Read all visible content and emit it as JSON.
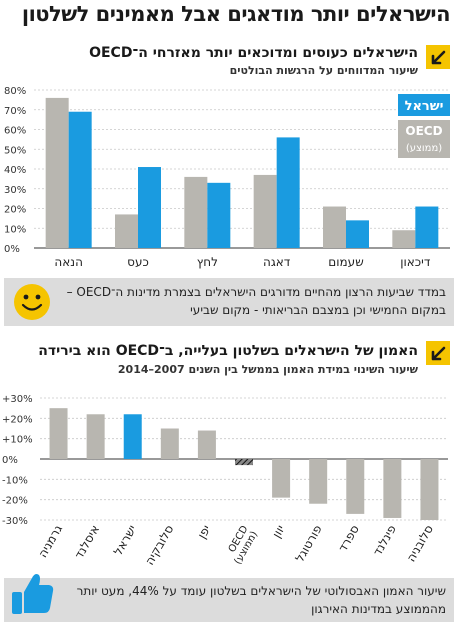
{
  "title": "הישראלים יותר מודאגים אבל מאמינים לשלטון",
  "section1": {
    "title": "הישראלים כעוסים ומדוכאים יותר מאזרחי ה־OECD",
    "subtitle": "שיעור המדווחים על הרגשות הבולטים",
    "info_text": "במדד שביעות הרצון מהחיים מדורגים הישראלים בצמרת מדינות ה־OECD – במקום החמישי וכן במצבם הבריאותי - מקום שביעי"
  },
  "section2": {
    "title": "האמון של הישראלים בשלטון בעלייה, ב־OECD הוא בירידה",
    "subtitle": "שיעור השינוי במידת האמון בממשל בין השנים 2007–2014",
    "info_text": "שיעור האמון האבסולוטי של הישראלים בשלטון עומד על 44%, מעט יותר מהממוצע במדינות האירגון"
  },
  "colors": {
    "israel": "#1a9be0",
    "oecd": "#b8b6b0",
    "accent": "#f5c400",
    "box": "#dcdcdc"
  },
  "icons": {
    "section1_marker": "arrow-icon",
    "section2_marker": "arrow-icon",
    "section1_box": "smiley-icon",
    "section2_box": "thumbs-up-icon"
  },
  "chart_data": [
    {
      "type": "bar",
      "categories": [
        "הנאה",
        "כעס",
        "לחץ",
        "דאגה",
        "שעמום",
        "דיכאון"
      ],
      "series": [
        {
          "name": "OECD (ממוצע)",
          "values": [
            76,
            17,
            36,
            37,
            21,
            9
          ]
        },
        {
          "name": "ישראל",
          "values": [
            69,
            41,
            33,
            56,
            14,
            21
          ]
        }
      ],
      "ylim": [
        0,
        80
      ],
      "yticks": [
        "0%",
        "10%",
        "20%",
        "30%",
        "40%",
        "50%",
        "60%",
        "70%",
        "80%"
      ],
      "legend": [
        {
          "label": "ישראל",
          "series": "ישראל"
        },
        {
          "label": "OECD",
          "sub": "(ממוצע)",
          "series": "OECD (ממוצע)"
        }
      ],
      "legend_position": "top-right",
      "grid": true
    },
    {
      "type": "bar",
      "categories": [
        "גרמניה",
        "איסלנד",
        "ישראל",
        "סלובקיה",
        "יפן",
        "OECD (ממוצע)",
        "יוון",
        "פורטוגל",
        "ספרד",
        "פינלנד",
        "סלובניה"
      ],
      "category_lines": [
        [
          "גרמניה"
        ],
        [
          "איסלנד"
        ],
        [
          "ישראל"
        ],
        [
          "סלובקיה"
        ],
        [
          "יפן"
        ],
        [
          "OECD",
          "(ממוצע)"
        ],
        [
          "יוון"
        ],
        [
          "פורטוגל"
        ],
        [
          "ספרד"
        ],
        [
          "פינלנד"
        ],
        [
          "סלובניה"
        ]
      ],
      "values": [
        25,
        22,
        22,
        15,
        14,
        -3,
        -19,
        -22,
        -27,
        -29,
        -30
      ],
      "highlight": "ישראל",
      "ylim": [
        -30,
        30
      ],
      "yticks": [
        "-30%",
        "-20%",
        "-10%",
        "0%",
        "+10%",
        "+20%",
        "+30%"
      ],
      "grid": true
    }
  ]
}
